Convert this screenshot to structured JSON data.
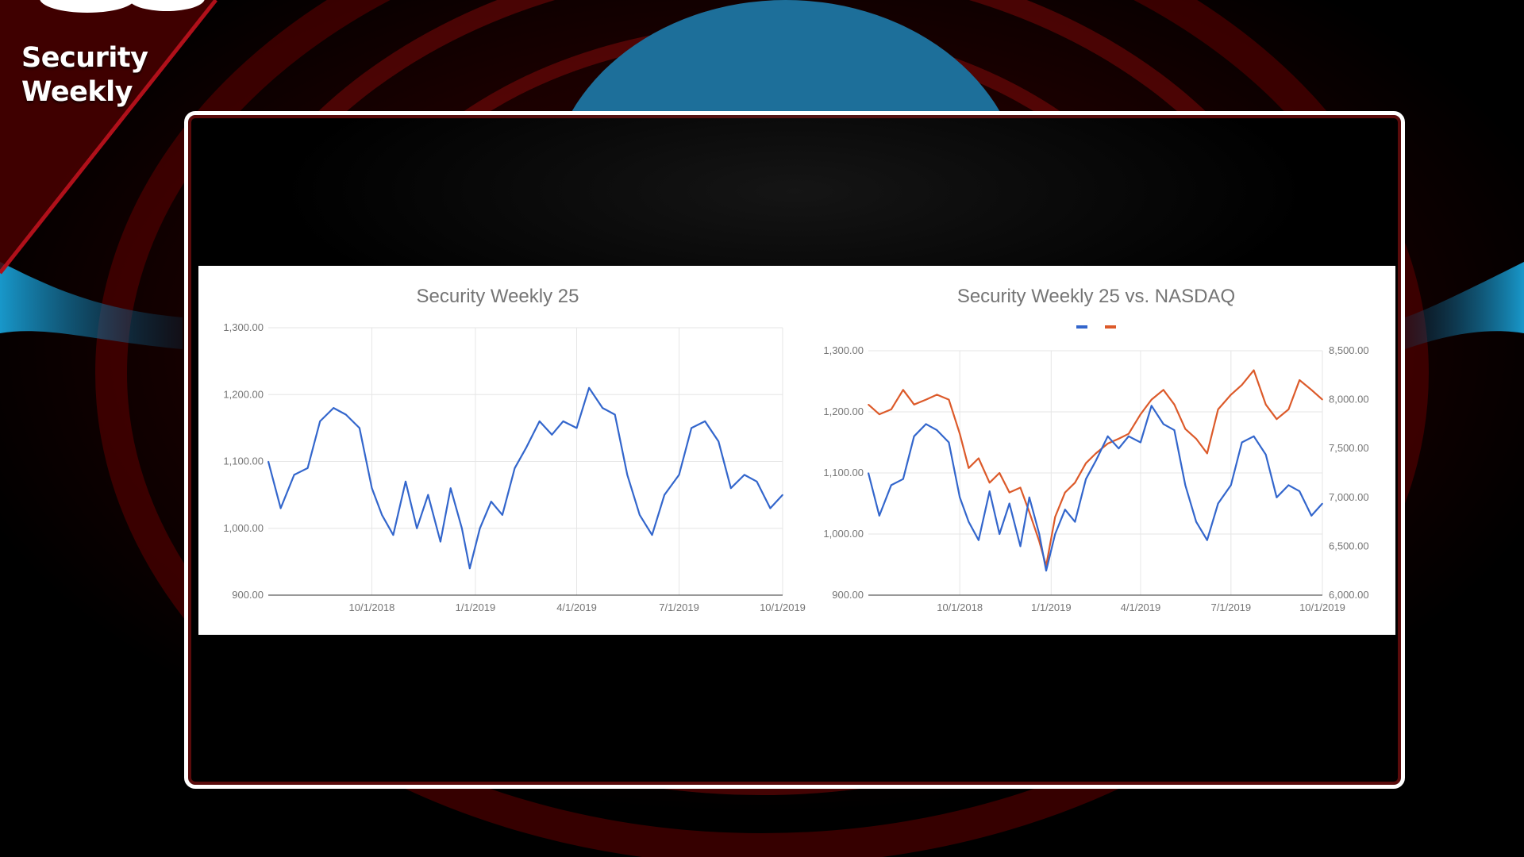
{
  "brand": {
    "line1": "Security",
    "line2": "Weekly"
  },
  "colors": {
    "accent_red": "#c0141e",
    "series_blue": "#3366cc",
    "series_orange": "#dc5a2a",
    "panel_bg": "#ffffff"
  },
  "chart_data": [
    {
      "type": "line",
      "title": "Security Weekly 25",
      "xlabel": "",
      "ylabel": "",
      "x_ticks": [
        "10/1/2018",
        "1/1/2019",
        "4/1/2019",
        "7/1/2019",
        "10/1/2019"
      ],
      "y_ticks": [
        "900.00",
        "1,000.00",
        "1,100.00",
        "1,200.00",
        "1,300.00"
      ],
      "ylim": [
        900,
        1300
      ],
      "xlim": [
        "2018-07-01",
        "2019-10-01"
      ],
      "grid": true,
      "series": [
        {
          "color": "#3366cc",
          "x": [
            "2018-07-01",
            "2018-07-12",
            "2018-07-24",
            "2018-08-05",
            "2018-08-16",
            "2018-08-28",
            "2018-09-08",
            "2018-09-20",
            "2018-10-01",
            "2018-10-10",
            "2018-10-20",
            "2018-10-31",
            "2018-11-10",
            "2018-11-20",
            "2018-12-01",
            "2018-12-10",
            "2018-12-20",
            "2018-12-27",
            "2019-01-05",
            "2019-01-15",
            "2019-01-25",
            "2019-02-05",
            "2019-02-15",
            "2019-02-27",
            "2019-03-10",
            "2019-03-20",
            "2019-04-01",
            "2019-04-12",
            "2019-04-24",
            "2019-05-05",
            "2019-05-16",
            "2019-05-27",
            "2019-06-07",
            "2019-06-18",
            "2019-07-01",
            "2019-07-12",
            "2019-07-24",
            "2019-08-05",
            "2019-08-16",
            "2019-08-28",
            "2019-09-08",
            "2019-09-20",
            "2019-10-01"
          ],
          "y": [
            1100,
            1030,
            1080,
            1090,
            1160,
            1180,
            1170,
            1150,
            1060,
            1020,
            990,
            1070,
            1000,
            1050,
            980,
            1060,
            1000,
            940,
            1000,
            1040,
            1020,
            1090,
            1120,
            1160,
            1140,
            1160,
            1150,
            1210,
            1180,
            1170,
            1080,
            1020,
            990,
            1050,
            1080,
            1150,
            1160,
            1130,
            1060,
            1080,
            1070,
            1030,
            1050
          ]
        }
      ]
    },
    {
      "type": "line",
      "title": "Security Weekly 25 vs. NASDAQ",
      "xlabel": "",
      "ylabel": "",
      "x_ticks": [
        "10/1/2018",
        "1/1/2019",
        "4/1/2019",
        "7/1/2019",
        "10/1/2019"
      ],
      "y_ticks_left": [
        "900.00",
        "1,000.00",
        "1,100.00",
        "1,200.00",
        "1,300.00"
      ],
      "y_ticks_right": [
        "6,000.00",
        "6,500.00",
        "7,000.00",
        "7,500.00",
        "8,000.00",
        "8,500.00"
      ],
      "ylim_left": [
        900,
        1300
      ],
      "ylim_right": [
        6000,
        8500
      ],
      "xlim": [
        "2018-07-01",
        "2019-10-01"
      ],
      "legend_position": "top",
      "grid": true,
      "series": [
        {
          "axis": "left",
          "color": "#3366cc",
          "x": [
            "2018-07-01",
            "2018-07-12",
            "2018-07-24",
            "2018-08-05",
            "2018-08-16",
            "2018-08-28",
            "2018-09-08",
            "2018-09-20",
            "2018-10-01",
            "2018-10-10",
            "2018-10-20",
            "2018-10-31",
            "2018-11-10",
            "2018-11-20",
            "2018-12-01",
            "2018-12-10",
            "2018-12-20",
            "2018-12-27",
            "2019-01-05",
            "2019-01-15",
            "2019-01-25",
            "2019-02-05",
            "2019-02-15",
            "2019-02-27",
            "2019-03-10",
            "2019-03-20",
            "2019-04-01",
            "2019-04-12",
            "2019-04-24",
            "2019-05-05",
            "2019-05-16",
            "2019-05-27",
            "2019-06-07",
            "2019-06-18",
            "2019-07-01",
            "2019-07-12",
            "2019-07-24",
            "2019-08-05",
            "2019-08-16",
            "2019-08-28",
            "2019-09-08",
            "2019-09-20",
            "2019-10-01"
          ],
          "y": [
            1100,
            1030,
            1080,
            1090,
            1160,
            1180,
            1170,
            1150,
            1060,
            1020,
            990,
            1070,
            1000,
            1050,
            980,
            1060,
            1000,
            940,
            1000,
            1040,
            1020,
            1090,
            1120,
            1160,
            1140,
            1160,
            1150,
            1210,
            1180,
            1170,
            1080,
            1020,
            990,
            1050,
            1080,
            1150,
            1160,
            1130,
            1060,
            1080,
            1070,
            1030,
            1050
          ]
        },
        {
          "axis": "right",
          "color": "#dc5a2a",
          "x": [
            "2018-07-01",
            "2018-07-12",
            "2018-07-24",
            "2018-08-05",
            "2018-08-16",
            "2018-08-28",
            "2018-09-08",
            "2018-09-20",
            "2018-10-01",
            "2018-10-10",
            "2018-10-20",
            "2018-10-31",
            "2018-11-10",
            "2018-11-20",
            "2018-12-01",
            "2018-12-10",
            "2018-12-20",
            "2018-12-27",
            "2019-01-05",
            "2019-01-15",
            "2019-01-25",
            "2019-02-05",
            "2019-02-15",
            "2019-02-27",
            "2019-03-10",
            "2019-03-20",
            "2019-04-01",
            "2019-04-12",
            "2019-04-24",
            "2019-05-05",
            "2019-05-16",
            "2019-05-27",
            "2019-06-07",
            "2019-06-18",
            "2019-07-01",
            "2019-07-12",
            "2019-07-24",
            "2019-08-05",
            "2019-08-16",
            "2019-08-28",
            "2019-09-08",
            "2019-09-20",
            "2019-10-01"
          ],
          "y": [
            7950,
            7850,
            7900,
            8100,
            7950,
            8000,
            8050,
            8000,
            7650,
            7300,
            7400,
            7150,
            7250,
            7050,
            7100,
            6850,
            6550,
            6300,
            6800,
            7050,
            7150,
            7350,
            7450,
            7550,
            7600,
            7650,
            7850,
            8000,
            8100,
            7950,
            7700,
            7600,
            7450,
            7900,
            8050,
            8150,
            8300,
            7950,
            7800,
            7900,
            8200,
            8100,
            8000
          ]
        }
      ]
    }
  ]
}
